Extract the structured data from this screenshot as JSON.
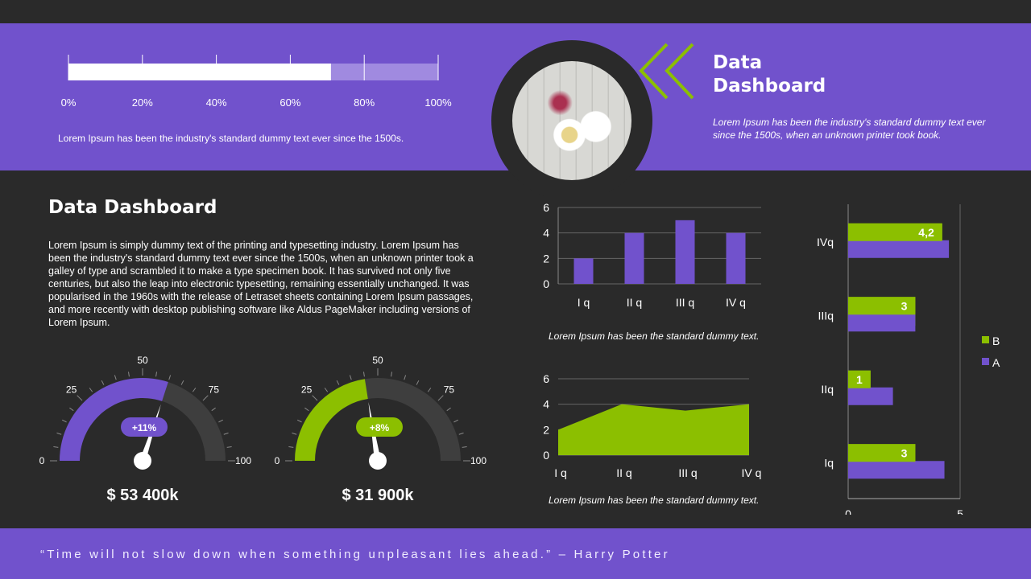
{
  "header": {
    "progress": {
      "value_percent": 71,
      "ticks": [
        "0%",
        "20%",
        "40%",
        "60%",
        "80%",
        "100%"
      ]
    },
    "progress_caption": "Lorem Ipsum has been the industry's standard dummy text ever since the 1500s.",
    "title_line1": "Data",
    "title_line2": "Dashboard",
    "subtitle": "Lorem Ipsum has been the industry's standard dummy text ever since the 1500s, when an unknown printer took book."
  },
  "main": {
    "title": "Data Dashboard",
    "body": "Lorem Ipsum is simply dummy text of the printing and typesetting industry. Lorem Ipsum has been the industry's standard dummy text ever since the 1500s, when an unknown printer took a galley of type and scrambled it to make a type specimen book. It has survived not only five centuries, but also the leap into electronic typesetting, remaining essentially unchanged. It was popularised in the 1960s with the release of Letraset sheets containing Lorem Ipsum passages, and more recently with desktop publishing software like Aldus PageMaker including versions of Lorem Ipsum."
  },
  "gauges": [
    {
      "value": 60,
      "badge": "+11%",
      "amount": "$ 53 400k",
      "color": "#7152cc",
      "labels": [
        "0",
        "25",
        "50",
        "75",
        "100"
      ]
    },
    {
      "value": 45,
      "badge": "+8%",
      "amount": "$ 31 900k",
      "color": "#8cbf00",
      "labels": [
        "0",
        "25",
        "50",
        "75",
        "100"
      ]
    }
  ],
  "captions": {
    "column": "Lorem Ipsum has been the standard dummy text.",
    "area": "Lorem Ipsum has been the standard dummy text."
  },
  "footer": {
    "quote": "“Time will not slow down when something unpleasant lies ahead.” – Harry Potter"
  },
  "colors": {
    "purple": "#7152cc",
    "green": "#8cbf00",
    "background": "#2a2a2a"
  },
  "chart_data": [
    {
      "type": "bar",
      "categories": [
        "I q",
        "II q",
        "III q",
        "IV q"
      ],
      "values": [
        2,
        4,
        5,
        4
      ],
      "ylim": [
        0,
        6
      ],
      "yticks": [
        "0",
        "2",
        "4",
        "6"
      ],
      "grid": true,
      "color": "#7152cc"
    },
    {
      "type": "area",
      "categories": [
        "I q",
        "II q",
        "III q",
        "IV q"
      ],
      "values": [
        2,
        4,
        3.5,
        4
      ],
      "ylim": [
        0,
        6
      ],
      "yticks": [
        "0",
        "2",
        "4",
        "6"
      ],
      "grid": true,
      "color": "#8cbf00"
    },
    {
      "type": "bar",
      "orientation": "horizontal",
      "categories": [
        "Iq",
        "IIq",
        "IIIq",
        "IVq"
      ],
      "series": [
        {
          "name": "B",
          "values": [
            3,
            1,
            3,
            4.2
          ],
          "labels": [
            "3",
            "1",
            "3",
            "4,2"
          ],
          "color": "#8cbf00"
        },
        {
          "name": "A",
          "values": [
            4.3,
            2,
            3,
            4.5
          ],
          "color": "#7152cc"
        }
      ],
      "xlim": [
        0,
        5
      ],
      "xticks": [
        "0",
        "5"
      ],
      "legend": "right"
    }
  ]
}
